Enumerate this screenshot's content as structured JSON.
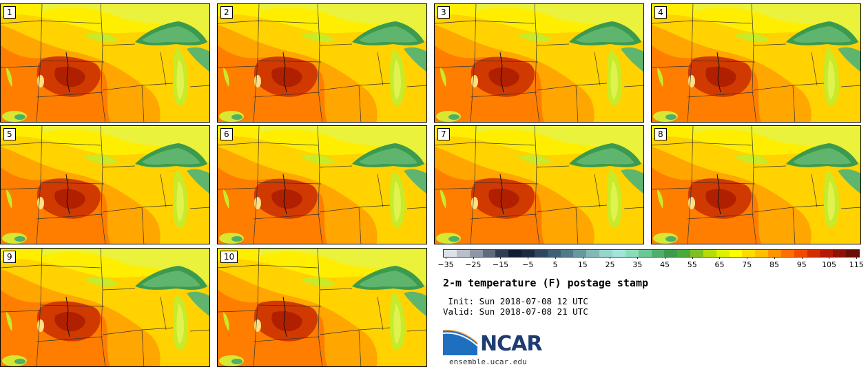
{
  "panels": [
    {
      "label": "1"
    },
    {
      "label": "2"
    },
    {
      "label": "3"
    },
    {
      "label": "4"
    },
    {
      "label": "5"
    },
    {
      "label": "6"
    },
    {
      "label": "7"
    },
    {
      "label": "8"
    },
    {
      "label": "9"
    },
    {
      "label": "10"
    }
  ],
  "title": "2-m temperature (F) postage stamp",
  "init": " Init: Sun 2018-07-08 12 UTC",
  "valid": "Valid: Sun 2018-07-08 21 UTC",
  "logo_text": "NCAR",
  "url": "ensemble.ucar.edu",
  "colorbar": {
    "ticks": [
      "−35",
      "−25",
      "−15",
      "−5",
      "5",
      "15",
      "25",
      "35",
      "45",
      "55",
      "65",
      "75",
      "85",
      "95",
      "105",
      "115"
    ],
    "colors": [
      "#dde2ea",
      "#b8bfcb",
      "#8f98a8",
      "#5f6b7e",
      "#2f3d52",
      "#101c30",
      "#1a2a40",
      "#2d4760",
      "#3f5f77",
      "#4f7a8a",
      "#66989f",
      "#82b8b6",
      "#97d4ce",
      "#a2e4dc",
      "#8cdcb8",
      "#6cc794",
      "#4fae6b",
      "#3c9a4e",
      "#4ba83c",
      "#7ec020",
      "#b4dc0a",
      "#dcf000",
      "#ffff00",
      "#ffdc00",
      "#ffbe00",
      "#ff9400",
      "#ff6e00",
      "#f04a00",
      "#d22e00",
      "#b41a06",
      "#8e1208",
      "#6a0e08"
    ]
  }
}
